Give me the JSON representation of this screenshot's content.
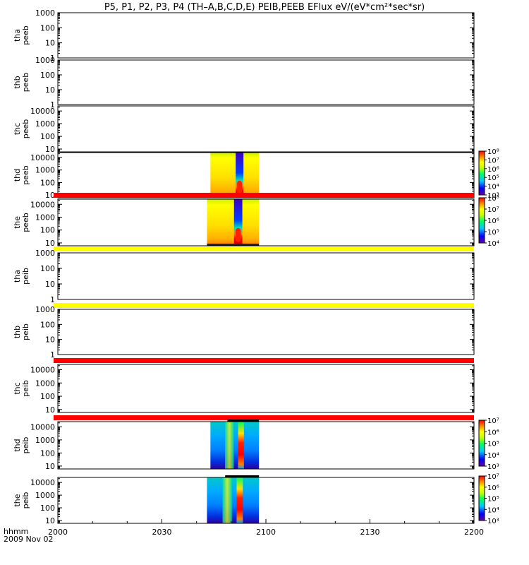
{
  "title": "P5, P1, P2, P3, P4 (TH–A,B,C,D,E) PEIB,PEEB EFlux eV/(eV*cm²*sec*sr)",
  "x_axis": {
    "label": "hhmm",
    "date": "2009 Nov 02",
    "ticks": [
      "2000",
      "2030",
      "2100",
      "2130",
      "2200"
    ]
  },
  "chart_data": {
    "type": "heatmap",
    "title": "P5, P1, P2, P3, P4 (TH–A,B,C,D,E) PEIB,PEEB EFlux eV/(eV*cm²*sec*sr)",
    "xlabel": "hhmm",
    "x_range": [
      "2000",
      "2200"
    ],
    "yscale": "log",
    "panels": [
      {
        "name": "tha peeb",
        "ylabel": [
          "tha",
          "peeb"
        ],
        "yticks": [
          "1",
          "10",
          "100",
          "1000"
        ],
        "ylim": [
          1,
          1000
        ],
        "has_data": false,
        "flag": null,
        "colorbar": null
      },
      {
        "name": "thb peeb",
        "ylabel": [
          "thb",
          "peeb"
        ],
        "yticks": [
          "1",
          "10",
          "100",
          "1000"
        ],
        "ylim": [
          1,
          1000
        ],
        "has_data": false,
        "flag": null,
        "colorbar": null
      },
      {
        "name": "thc peeb",
        "ylabel": [
          "thc",
          "peeb"
        ],
        "yticks": [
          "10",
          "100",
          "1000",
          "10000"
        ],
        "ylim": [
          6,
          25000
        ],
        "has_data": false,
        "flag": null,
        "colorbar": null
      },
      {
        "name": "thd peeb",
        "ylabel": [
          "thd",
          "peeb"
        ],
        "yticks": [
          "10",
          "100",
          "1000",
          "10000"
        ],
        "ylim": [
          6,
          25000
        ],
        "has_data": true,
        "x_data_range": [
          "2044",
          "2058"
        ],
        "flag": null,
        "colorbar": {
          "ticks": [
            "10³",
            "10⁴",
            "10⁵",
            "10⁶",
            "10⁷",
            "10⁸"
          ]
        }
      },
      {
        "name": "the peeb",
        "ylabel": [
          "the",
          "peeb"
        ],
        "yticks": [
          "10",
          "100",
          "1000",
          "10000"
        ],
        "ylim": [
          6,
          25000
        ],
        "has_data": true,
        "x_data_range": [
          "2043",
          "2058"
        ],
        "flag": "red",
        "colorbar": {
          "ticks": [
            "10⁴",
            "10⁵",
            "10⁶",
            "10⁷",
            "10⁸"
          ]
        }
      },
      {
        "name": "tha peib",
        "ylabel": [
          "tha",
          "peib"
        ],
        "yticks": [
          "1",
          "10",
          "100",
          "1000"
        ],
        "ylim": [
          1,
          1000
        ],
        "has_data": false,
        "flag": "yellow",
        "colorbar": null
      },
      {
        "name": "thb peib",
        "ylabel": [
          "thb",
          "peib"
        ],
        "yticks": [
          "1",
          "10",
          "100",
          "1000"
        ],
        "ylim": [
          1,
          1000
        ],
        "has_data": false,
        "flag": "yellow",
        "colorbar": null
      },
      {
        "name": "thc peib",
        "ylabel": [
          "thc",
          "peib"
        ],
        "yticks": [
          "10",
          "100",
          "1000",
          "10000"
        ],
        "ylim": [
          6,
          25000
        ],
        "has_data": false,
        "flag": "red",
        "colorbar": null
      },
      {
        "name": "thd peib",
        "ylabel": [
          "thd",
          "peib"
        ],
        "yticks": [
          "10",
          "100",
          "1000",
          "10000"
        ],
        "ylim": [
          6,
          25000
        ],
        "has_data": true,
        "x_data_range": [
          "2044",
          "2058"
        ],
        "flag": "red",
        "colorbar": {
          "ticks": [
            "10³",
            "10⁴",
            "10⁵",
            "10⁶",
            "10⁷"
          ]
        }
      },
      {
        "name": "the peib",
        "ylabel": [
          "the",
          "peib"
        ],
        "yticks": [
          "10",
          "100",
          "1000",
          "10000"
        ],
        "ylim": [
          6,
          25000
        ],
        "has_data": true,
        "x_data_range": [
          "2043",
          "2058"
        ],
        "flag": null,
        "colorbar": {
          "ticks": [
            "10³",
            "10⁴",
            "10⁵",
            "10⁶",
            "10⁷"
          ]
        }
      }
    ]
  },
  "colors": {
    "flag_red": "#ff0000",
    "flag_yellow": "#ffff00",
    "axis": "#000000"
  }
}
